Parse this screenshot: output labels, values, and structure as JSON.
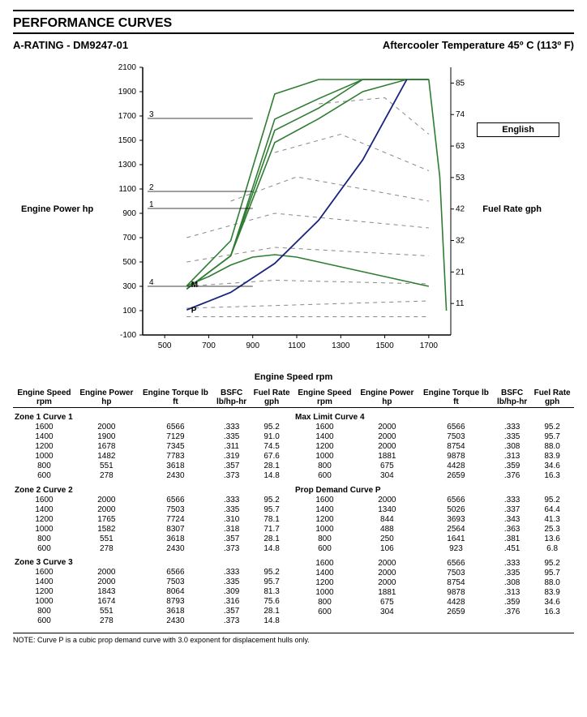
{
  "header": {
    "title": "PERFORMANCE CURVES",
    "rating": "A-RATING - DM9247-01",
    "aftercooler": "Aftercooler Temperature 45º C (113º F)"
  },
  "chart": {
    "language_label": "English",
    "y_label_left": "Engine Power hp",
    "y_label_right": "Fuel Rate gph",
    "x_label": "Engine Speed rpm",
    "x_min": 400,
    "x_max": 1800,
    "x_ticks": [
      500,
      700,
      900,
      1100,
      1300,
      1500,
      1700
    ],
    "y_min": -100,
    "y_max": 2100,
    "y_ticks": [
      -100,
      100,
      300,
      500,
      700,
      900,
      1100,
      1300,
      1500,
      1700,
      1900,
      2100
    ],
    "y2_ticks": [
      11,
      21,
      32,
      42,
      53,
      63,
      74,
      85
    ],
    "plot_bg": "#ffffff",
    "axis_color": "#000000",
    "grid_color": "#cccccc",
    "curve_color_green": "#2f7d32",
    "curve_color_blue": "#1a237e",
    "curve_color_dash": "#888888",
    "label_markers": [
      {
        "num": "3",
        "y": 1680
      },
      {
        "num": "2",
        "y": 1080
      },
      {
        "num": "1",
        "y": 940
      },
      {
        "num": "4",
        "y": 300
      },
      {
        "txt": "M",
        "y": 320,
        "x": 620
      },
      {
        "txt": "P",
        "y": 110,
        "x": 620
      }
    ],
    "curves_green": [
      [
        [
          600,
          278
        ],
        [
          800,
          551
        ],
        [
          1000,
          1482
        ],
        [
          1200,
          1678
        ],
        [
          1400,
          1900
        ],
        [
          1600,
          2000
        ],
        [
          1700,
          2000
        ]
      ],
      [
        [
          600,
          278
        ],
        [
          800,
          551
        ],
        [
          1000,
          1582
        ],
        [
          1200,
          1765
        ],
        [
          1400,
          2000
        ],
        [
          1600,
          2000
        ],
        [
          1700,
          2000
        ]
      ],
      [
        [
          600,
          278
        ],
        [
          800,
          551
        ],
        [
          1000,
          1674
        ],
        [
          1200,
          1843
        ],
        [
          1400,
          2000
        ],
        [
          1600,
          2000
        ],
        [
          1700,
          2000
        ]
      ],
      [
        [
          600,
          304
        ],
        [
          800,
          675
        ],
        [
          1000,
          1881
        ],
        [
          1200,
          2000
        ],
        [
          1400,
          2000
        ],
        [
          1600,
          2000
        ],
        [
          1700,
          2000
        ]
      ]
    ],
    "curve_m": [
      [
        600,
        304
      ],
      [
        700,
        380
      ],
      [
        800,
        475
      ],
      [
        900,
        540
      ],
      [
        1000,
        560
      ],
      [
        1100,
        540
      ],
      [
        1200,
        500
      ],
      [
        1400,
        420
      ],
      [
        1600,
        340
      ],
      [
        1700,
        300
      ]
    ],
    "curve_drop": [
      [
        1700,
        2000
      ],
      [
        1750,
        1200
      ],
      [
        1780,
        100
      ]
    ],
    "curve_blue_p": [
      [
        600,
        106
      ],
      [
        800,
        250
      ],
      [
        1000,
        488
      ],
      [
        1200,
        844
      ],
      [
        1400,
        1340
      ],
      [
        1600,
        2000
      ]
    ],
    "curves_dash": [
      [
        [
          600,
          50
        ],
        [
          1700,
          50
        ]
      ],
      [
        [
          600,
          120
        ],
        [
          1700,
          180
        ]
      ],
      [
        [
          600,
          300
        ],
        [
          1000,
          350
        ],
        [
          1700,
          320
        ]
      ],
      [
        [
          600,
          500
        ],
        [
          1000,
          620
        ],
        [
          1700,
          550
        ]
      ],
      [
        [
          600,
          700
        ],
        [
          1000,
          900
        ],
        [
          1700,
          780
        ]
      ],
      [
        [
          800,
          1000
        ],
        [
          1100,
          1200
        ],
        [
          1700,
          1000
        ]
      ],
      [
        [
          1000,
          1400
        ],
        [
          1300,
          1550
        ],
        [
          1700,
          1250
        ]
      ],
      [
        [
          1200,
          1800
        ],
        [
          1500,
          1850
        ],
        [
          1700,
          1550
        ]
      ]
    ]
  },
  "table": {
    "headers": [
      "Engine Speed rpm",
      "Engine Power hp",
      "Engine Torque lb ft",
      "BSFC lb/hp-hr",
      "Fuel Rate gph"
    ],
    "left_groups": [
      {
        "title": "Zone 1 Curve 1",
        "rows": [
          [
            1600,
            2000,
            6566,
            ".333",
            "95.2"
          ],
          [
            1400,
            1900,
            7129,
            ".335",
            "91.0"
          ],
          [
            1200,
            1678,
            7345,
            ".311",
            "74.5"
          ],
          [
            1000,
            1482,
            7783,
            ".319",
            "67.6"
          ],
          [
            800,
            551,
            3618,
            ".357",
            "28.1"
          ],
          [
            600,
            278,
            2430,
            ".373",
            "14.8"
          ]
        ]
      },
      {
        "title": "Zone 2 Curve 2",
        "rows": [
          [
            1600,
            2000,
            6566,
            ".333",
            "95.2"
          ],
          [
            1400,
            2000,
            7503,
            ".335",
            "95.7"
          ],
          [
            1200,
            1765,
            7724,
            ".310",
            "78.1"
          ],
          [
            1000,
            1582,
            8307,
            ".318",
            "71.7"
          ],
          [
            800,
            551,
            3618,
            ".357",
            "28.1"
          ],
          [
            600,
            278,
            2430,
            ".373",
            "14.8"
          ]
        ]
      },
      {
        "title": "Zone 3 Curve 3",
        "rows": [
          [
            1600,
            2000,
            6566,
            ".333",
            "95.2"
          ],
          [
            1400,
            2000,
            7503,
            ".335",
            "95.7"
          ],
          [
            1200,
            1843,
            8064,
            ".309",
            "81.3"
          ],
          [
            1000,
            1674,
            8793,
            ".316",
            "75.6"
          ],
          [
            800,
            551,
            3618,
            ".357",
            "28.1"
          ],
          [
            600,
            278,
            2430,
            ".373",
            "14.8"
          ]
        ]
      }
    ],
    "right_groups": [
      {
        "title": "Max Limit Curve 4",
        "rows": [
          [
            1600,
            2000,
            6566,
            ".333",
            "95.2"
          ],
          [
            1400,
            2000,
            7503,
            ".335",
            "95.7"
          ],
          [
            1200,
            2000,
            8754,
            ".308",
            "88.0"
          ],
          [
            1000,
            1881,
            9878,
            ".313",
            "83.9"
          ],
          [
            800,
            675,
            4428,
            ".359",
            "34.6"
          ],
          [
            600,
            304,
            2659,
            ".376",
            "16.3"
          ]
        ]
      },
      {
        "title": "Prop Demand Curve P",
        "rows": [
          [
            1600,
            2000,
            6566,
            ".333",
            "95.2"
          ],
          [
            1400,
            1340,
            5026,
            ".337",
            "64.4"
          ],
          [
            1200,
            844,
            3693,
            ".343",
            "41.3"
          ],
          [
            1000,
            488,
            2564,
            ".363",
            "25.3"
          ],
          [
            800,
            250,
            1641,
            ".381",
            "13.6"
          ],
          [
            600,
            106,
            923,
            ".451",
            "6.8"
          ]
        ]
      },
      {
        "title": "",
        "rows": [
          [
            1600,
            2000,
            6566,
            ".333",
            "95.2"
          ],
          [
            1400,
            2000,
            7503,
            ".335",
            "95.7"
          ],
          [
            1200,
            2000,
            8754,
            ".308",
            "88.0"
          ],
          [
            1000,
            1881,
            9878,
            ".313",
            "83.9"
          ],
          [
            800,
            675,
            4428,
            ".359",
            "34.6"
          ],
          [
            600,
            304,
            2659,
            ".376",
            "16.3"
          ]
        ]
      }
    ]
  },
  "note": "NOTE: Curve P is a cubic prop demand curve with 3.0 exponent for displacement hulls only."
}
